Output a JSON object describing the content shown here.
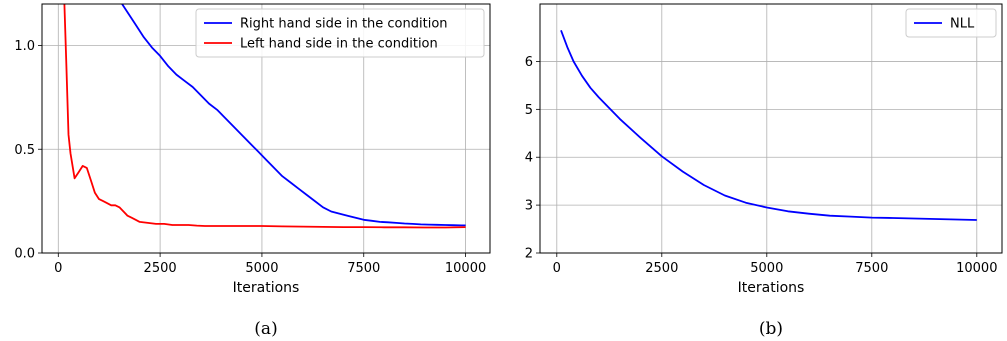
{
  "chart_data": [
    {
      "type": "line",
      "xlabel": "Iterations",
      "ylabel": "",
      "caption": "(a)",
      "xlim": [
        -400,
        10600
      ],
      "ylim": [
        0,
        1.2
      ],
      "xticks": [
        "0",
        "2500",
        "5000",
        "7500",
        "10000"
      ],
      "yticks": [
        "0.0",
        "0.5",
        "1.0"
      ],
      "grid": true,
      "legend_position": "top-right",
      "series": [
        {
          "name": "Right hand side in the condition",
          "color": "#0000ff",
          "x": [
            1500,
            1700,
            1900,
            2100,
            2300,
            2500,
            2700,
            2900,
            3100,
            3300,
            3500,
            3700,
            3900,
            4100,
            4300,
            4500,
            4700,
            4900,
            5100,
            5300,
            5500,
            5700,
            5900,
            6100,
            6300,
            6500,
            6700,
            6900,
            7100,
            7300,
            7500,
            7700,
            7900,
            8100,
            8300,
            8500,
            8700,
            8900,
            9100,
            9300,
            9500,
            9700,
            9900,
            10000
          ],
          "y": [
            1.22,
            1.16,
            1.1,
            1.04,
            0.99,
            0.95,
            0.9,
            0.86,
            0.83,
            0.8,
            0.76,
            0.72,
            0.69,
            0.65,
            0.61,
            0.57,
            0.53,
            0.49,
            0.45,
            0.41,
            0.37,
            0.34,
            0.31,
            0.28,
            0.25,
            0.22,
            0.2,
            0.19,
            0.18,
            0.17,
            0.16,
            0.155,
            0.15,
            0.148,
            0.145,
            0.142,
            0.14,
            0.138,
            0.137,
            0.136,
            0.135,
            0.134,
            0.133,
            0.133
          ]
        },
        {
          "name": "Left hand side in the condition",
          "color": "#ff0000",
          "x": [
            150,
            200,
            250,
            300,
            400,
            500,
            600,
            700,
            800,
            900,
            1000,
            1100,
            1200,
            1300,
            1400,
            1500,
            1600,
            1700,
            1800,
            1900,
            2000,
            2200,
            2400,
            2600,
            2800,
            3000,
            3200,
            3400,
            3600,
            3800,
            4000,
            4500,
            5000,
            5500,
            6000,
            6500,
            7000,
            7500,
            8000,
            8500,
            9000,
            9500,
            10000
          ],
          "y": [
            1.2,
            0.9,
            0.57,
            0.48,
            0.36,
            0.39,
            0.42,
            0.41,
            0.35,
            0.29,
            0.26,
            0.25,
            0.24,
            0.23,
            0.23,
            0.22,
            0.2,
            0.18,
            0.17,
            0.16,
            0.15,
            0.145,
            0.14,
            0.14,
            0.135,
            0.135,
            0.135,
            0.132,
            0.13,
            0.13,
            0.13,
            0.13,
            0.13,
            0.128,
            0.127,
            0.126,
            0.125,
            0.125,
            0.124,
            0.124,
            0.123,
            0.123,
            0.125
          ]
        }
      ]
    },
    {
      "type": "line",
      "xlabel": "Iterations",
      "ylabel": "",
      "caption": "(b)",
      "xlim": [
        -400,
        10600
      ],
      "ylim": [
        2,
        7.2
      ],
      "xticks": [
        "0",
        "2500",
        "5000",
        "7500",
        "10000"
      ],
      "yticks": [
        "2",
        "3",
        "4",
        "5",
        "6"
      ],
      "grid": true,
      "legend_position": "top-right",
      "series": [
        {
          "name": "NLL",
          "color": "#0000ff",
          "x": [
            100,
            250,
            400,
            600,
            800,
            1000,
            1500,
            2000,
            2500,
            3000,
            3500,
            4000,
            4500,
            5000,
            5500,
            6000,
            6500,
            7000,
            7500,
            8000,
            9000,
            10000
          ],
          "y": [
            6.65,
            6.3,
            6.0,
            5.7,
            5.45,
            5.25,
            4.8,
            4.4,
            4.02,
            3.7,
            3.42,
            3.2,
            3.05,
            2.95,
            2.87,
            2.82,
            2.78,
            2.76,
            2.74,
            2.73,
            2.71,
            2.69
          ]
        }
      ]
    }
  ]
}
